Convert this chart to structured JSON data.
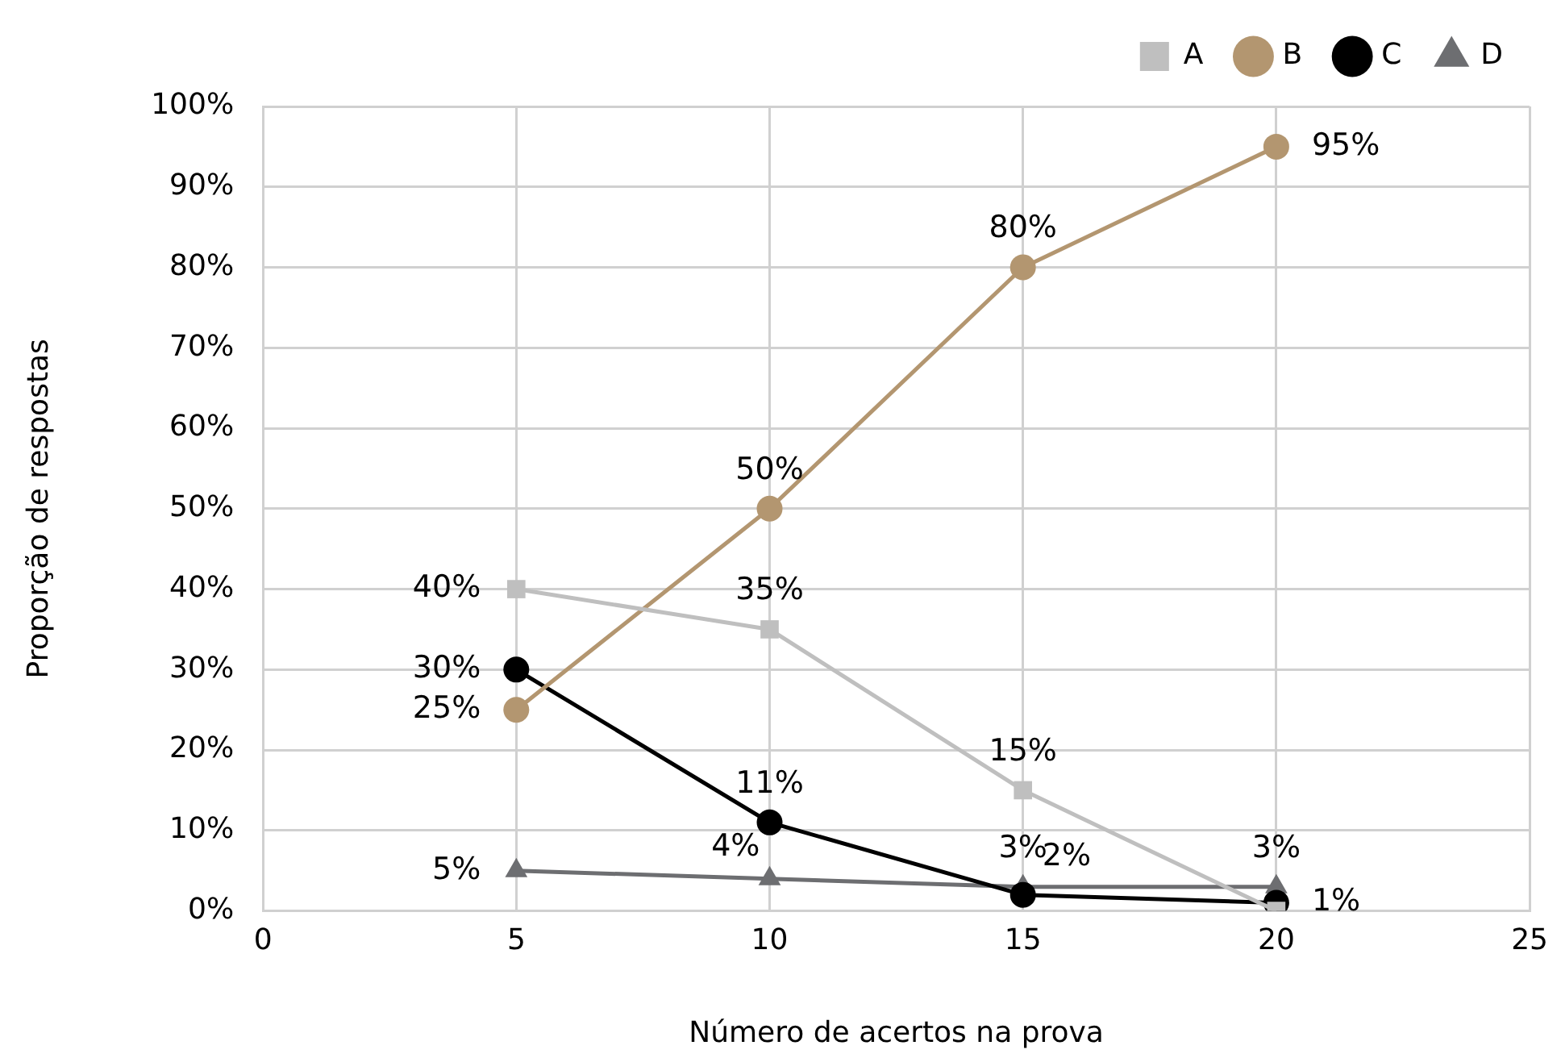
{
  "chart_data": {
    "type": "line",
    "xlabel": "Número de acertos na prova",
    "ylabel": "Proporção de respostas",
    "x": [
      5,
      10,
      15,
      20
    ],
    "series": [
      {
        "name": "A",
        "color": "#bfbfbf",
        "marker": "square",
        "values": [
          40,
          35,
          15,
          0
        ],
        "value_labels": [
          "40%",
          "35%",
          "15%",
          null
        ]
      },
      {
        "name": "B",
        "color": "#b39670",
        "marker": "circle",
        "values": [
          25,
          50,
          80,
          95
        ],
        "value_labels": [
          "25%",
          "50%",
          "80%",
          "95%"
        ]
      },
      {
        "name": "C",
        "color": "#000000",
        "marker": "circle",
        "values": [
          30,
          11,
          2,
          1
        ],
        "value_labels": [
          "30%",
          "11%",
          "2%",
          "1%"
        ]
      },
      {
        "name": "D",
        "color": "#6d6e71",
        "marker": "triangle",
        "values": [
          5,
          4,
          3,
          3
        ],
        "value_labels": [
          "5%",
          "4%",
          "3%",
          "3%"
        ]
      }
    ],
    "xlim": [
      0,
      25
    ],
    "xticks": [
      0,
      5,
      10,
      15,
      20,
      25
    ],
    "ylim": [
      0,
      100
    ],
    "yticks": [
      {
        "value": 0,
        "label": "0%"
      },
      {
        "value": 10,
        "label": "10%"
      },
      {
        "value": 20,
        "label": "20%"
      },
      {
        "value": 30,
        "label": "30%"
      },
      {
        "value": 40,
        "label": "40%"
      },
      {
        "value": 50,
        "label": "50%"
      },
      {
        "value": 60,
        "label": "60%"
      },
      {
        "value": 70,
        "label": "70%"
      },
      {
        "value": 80,
        "label": "80%"
      },
      {
        "value": 90,
        "label": "90%"
      },
      {
        "value": 100,
        "label": "100%"
      }
    ],
    "grid": true,
    "legend": "top right",
    "line_style": "solid"
  }
}
